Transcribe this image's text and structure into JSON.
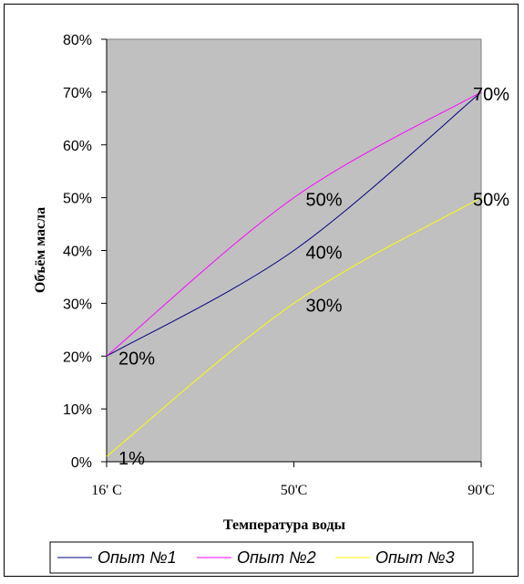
{
  "chart_data": {
    "type": "line",
    "title": "",
    "xlabel": "Температура воды",
    "ylabel": "Объём масла",
    "categories": [
      "16' C",
      "50'C",
      "90'C"
    ],
    "ylim": [
      0,
      80
    ],
    "yticks": [
      "0%",
      "10%",
      "20%",
      "30%",
      "40%",
      "50%",
      "60%",
      "70%",
      "80%"
    ],
    "grid": false,
    "legend_position": "bottom",
    "plot_background": "#c0c0c0",
    "series": [
      {
        "name": "Опыт №1",
        "color": "#000080",
        "values": [
          20,
          40,
          70
        ]
      },
      {
        "name": "Опыт №2",
        "color": "#ff00ff",
        "values": [
          20,
          50,
          70
        ]
      },
      {
        "name": "Опыт №3",
        "color": "#ffff00",
        "values": [
          1,
          30,
          50
        ]
      }
    ],
    "data_labels": [
      {
        "x": 0,
        "y": 20,
        "text": "20%"
      },
      {
        "x": 0,
        "y": 1,
        "text": "1%"
      },
      {
        "x": 1,
        "y": 50,
        "text": "50%"
      },
      {
        "x": 1,
        "y": 40,
        "text": "40%"
      },
      {
        "x": 1,
        "y": 30,
        "text": "30%"
      },
      {
        "x": 2,
        "y": 70,
        "text": "70%"
      },
      {
        "x": 2,
        "y": 50,
        "text": "50%"
      }
    ]
  }
}
